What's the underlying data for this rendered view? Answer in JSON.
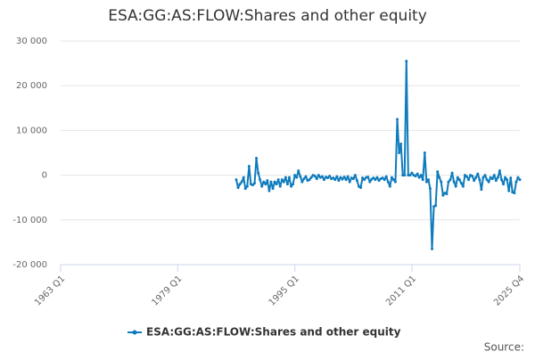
{
  "chart_data": {
    "type": "line",
    "title": "ESA:GG:AS:FLOW:Shares and other equity",
    "source": "Source:",
    "categories": [
      "1963 Q1",
      null,
      null,
      null,
      null,
      null,
      null,
      null,
      null,
      null,
      null,
      null,
      null,
      null,
      null,
      null,
      null,
      null,
      null,
      null,
      null,
      null,
      null,
      null,
      null,
      null,
      null,
      null,
      null,
      null,
      null,
      null,
      null,
      null,
      null,
      null,
      null,
      null,
      null,
      null,
      null,
      null,
      null,
      null,
      null,
      null,
      null,
      null,
      null,
      null,
      null,
      null,
      null,
      null,
      null,
      null,
      null,
      null,
      null,
      null,
      null,
      null,
      null,
      null,
      "1979 Q1",
      null,
      null,
      null,
      null,
      null,
      null,
      null,
      null,
      null,
      null,
      null,
      null,
      null,
      null,
      null,
      null,
      null,
      null,
      null,
      null,
      null,
      null,
      null,
      null,
      null,
      null,
      null,
      null,
      null,
      null,
      null,
      null,
      null,
      null,
      null,
      null,
      null,
      null,
      null,
      null,
      null,
      null,
      null,
      null,
      null,
      null,
      null,
      null,
      null,
      null,
      null,
      null,
      null,
      null,
      null,
      null,
      null,
      null,
      null,
      null,
      null,
      null,
      null,
      "1995 Q1",
      null,
      null,
      null,
      null,
      null,
      null,
      null,
      null,
      null,
      null,
      null,
      null,
      null,
      null,
      null,
      null,
      null,
      null,
      null,
      null,
      null,
      null,
      null,
      null,
      null,
      null,
      null,
      null,
      null,
      null,
      null,
      null,
      null,
      null,
      null,
      null,
      null,
      null,
      null,
      null,
      null,
      null,
      null,
      null,
      null,
      null,
      null,
      null,
      null,
      null,
      null,
      null,
      null,
      null,
      null,
      null,
      null,
      null,
      null,
      null,
      null,
      null,
      null,
      "2011 Q1",
      null,
      null,
      null,
      null,
      null,
      null,
      null,
      null,
      null,
      null,
      null,
      null,
      null,
      null,
      null,
      null,
      null,
      null,
      null,
      null,
      null,
      null,
      null,
      null,
      null,
      null,
      null,
      null,
      null,
      null,
      null,
      null,
      null,
      null,
      null,
      null,
      null,
      null,
      null,
      null,
      null,
      null,
      null,
      null,
      null,
      null,
      null,
      null,
      null,
      null,
      null,
      null,
      null,
      null,
      null,
      null,
      null,
      null,
      "2025 Q4"
    ],
    "series": [
      {
        "name": "ESA:GG:AS:FLOW:Shares and other equity",
        "color": "#0e7bbd",
        "values": [
          null,
          null,
          null,
          null,
          null,
          null,
          null,
          null,
          null,
          null,
          null,
          null,
          null,
          null,
          null,
          null,
          null,
          null,
          null,
          null,
          null,
          null,
          null,
          null,
          null,
          null,
          null,
          null,
          null,
          null,
          null,
          null,
          null,
          null,
          null,
          null,
          null,
          null,
          null,
          null,
          null,
          null,
          null,
          null,
          null,
          null,
          null,
          null,
          null,
          null,
          null,
          null,
          null,
          null,
          null,
          null,
          null,
          null,
          null,
          null,
          null,
          null,
          null,
          null,
          null,
          null,
          null,
          null,
          null,
          null,
          null,
          null,
          null,
          null,
          null,
          null,
          null,
          null,
          null,
          null,
          null,
          null,
          null,
          null,
          null,
          null,
          null,
          null,
          null,
          null,
          null,
          null,
          null,
          null,
          null,
          null,
          -1000,
          -2800,
          -2000,
          -1500,
          -500,
          -3000,
          -2500,
          2000,
          -2000,
          -2200,
          -1800,
          3800,
          500,
          -1000,
          -2500,
          -1500,
          -2000,
          -1200,
          -3500,
          -1500,
          -3000,
          -1500,
          -2000,
          -1000,
          -2500,
          -1000,
          -1500,
          -500,
          -2000,
          -500,
          -2500,
          -2000,
          0,
          -500,
          1000,
          -300,
          -1500,
          -800,
          -300,
          -1200,
          -1000,
          -500,
          0,
          -200,
          -800,
          0,
          -500,
          -300,
          -1000,
          -400,
          -600,
          -200,
          -800,
          -600,
          -1000,
          -300,
          -1200,
          -500,
          -900,
          -400,
          -1000,
          -300,
          -1500,
          -600,
          -800,
          0,
          -1200,
          -2500,
          -2800,
          -600,
          -1000,
          -500,
          -400,
          -1500,
          -900,
          -600,
          -1000,
          -500,
          -1200,
          -800,
          -600,
          -1000,
          -300,
          -1500,
          -2500,
          -500,
          -1000,
          -1500,
          12500,
          5000,
          7000,
          0,
          0,
          25500,
          0,
          0,
          500,
          0,
          -200,
          300,
          -500,
          0,
          -1000,
          5000,
          -1500,
          -1000,
          -3000,
          -16500,
          -7000,
          -6800,
          800,
          -500,
          -1500,
          -4500,
          -4000,
          -4200,
          -1500,
          -1000,
          500,
          -1500,
          -2500,
          -500,
          -1000,
          -1800,
          -2500,
          0,
          -300,
          -1000,
          0,
          -200,
          -1200,
          -500,
          300,
          -1000,
          -3200,
          -500,
          0,
          -1000,
          -1500,
          -500,
          -800,
          0,
          -1200,
          -500,
          1000,
          -1000,
          -2000,
          -500,
          -1000,
          -3500,
          -600,
          -3800,
          -4000,
          -1500,
          -500,
          -1000
        ]
      }
    ],
    "ylim": [
      -20000,
      30000
    ],
    "yticks": [
      {
        "value": -20000,
        "label": "-20 000"
      },
      {
        "value": -10000,
        "label": "-10 000"
      },
      0,
      {
        "value": 10000,
        "label": "10 000"
      },
      {
        "value": 20000,
        "label": "20 000"
      },
      {
        "value": 30000,
        "label": "30 000"
      }
    ],
    "grid": true
  }
}
